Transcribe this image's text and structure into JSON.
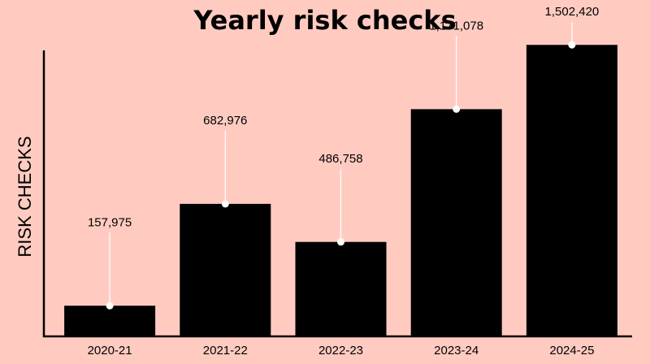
{
  "chart_data": {
    "type": "bar",
    "title": "Yearly risk checks",
    "xlabel": "",
    "ylabel": "RISK CHECKS",
    "categories": [
      "2020-21",
      "2021-22",
      "2022-23",
      "2023-24",
      "2024-25"
    ],
    "values": [
      157975,
      682976,
      486758,
      1171078,
      1502420
    ],
    "value_labels": [
      "157,975",
      "682,976",
      "486,758",
      "1,171,078",
      "1,502,420"
    ],
    "ylim": [
      0,
      1650000
    ],
    "grid": false,
    "legend": "none",
    "colors": {
      "background": "#ffcbc1",
      "bar": "#000000",
      "leader": "#ffffff",
      "text": "#000000"
    }
  }
}
